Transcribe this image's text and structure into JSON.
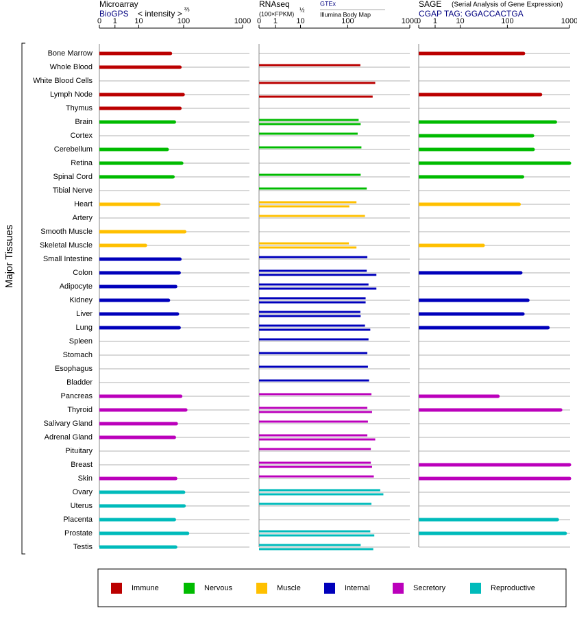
{
  "chart_data": {
    "type": "bar",
    "ylabel": "Major Tissues",
    "groups": [
      {
        "name": "Immune",
        "color": "#bb0000",
        "tissues": [
          "Bone Marrow",
          "Whole Blood",
          "White Blood Cells",
          "Lymph Node",
          "Thymus"
        ]
      },
      {
        "name": "Nervous",
        "color": "#00bb00",
        "tissues": [
          "Brain",
          "Cortex",
          "Cerebellum",
          "Retina",
          "Spinal Cord",
          "Tibial Nerve"
        ]
      },
      {
        "name": "Muscle",
        "color": "#ffc000",
        "tissues": [
          "Heart",
          "Artery",
          "Smooth Muscle",
          "Skeletal Muscle"
        ]
      },
      {
        "name": "Internal",
        "color": "#0000bb",
        "tissues": [
          "Small Intestine",
          "Colon",
          "Adipocyte",
          "Kidney",
          "Liver",
          "Lung",
          "Spleen",
          "Stomach",
          "Esophagus",
          "Bladder"
        ]
      },
      {
        "name": "Secretory",
        "color": "#bb00bb",
        "tissues": [
          "Pancreas",
          "Thyroid",
          "Salivary Gland",
          "Adrenal Gland",
          "Pituitary",
          "Breast",
          "Skin"
        ]
      },
      {
        "name": "Reproductive",
        "color": "#00bbbb",
        "tissues": [
          "Ovary",
          "Uterus",
          "Placenta",
          "Prostate",
          "Testis"
        ]
      }
    ],
    "panels": [
      {
        "title": "Microarray",
        "source": "BioGPS",
        "scale_label": "< intensity >",
        "exponent": "⅔",
        "xlim": [
          0,
          1000
        ],
        "xticks": [
          0,
          1,
          10,
          100,
          1000
        ],
        "values": [
          55,
          85,
          null,
          98,
          85,
          66,
          null,
          47,
          92,
          62,
          null,
          31,
          null,
          105,
          15,
          85,
          82,
          70,
          50,
          76,
          82,
          null,
          null,
          null,
          null,
          88,
          110,
          72,
          66,
          null,
          null,
          70,
          100,
          102,
          66,
          119,
          70
        ]
      },
      {
        "title": "RNAseq",
        "scale_label": "(100×FPKM)",
        "exponent": "½",
        "xlim": [
          0,
          1000
        ],
        "xticks": [
          0,
          1,
          10,
          100,
          1000
        ],
        "series": [
          {
            "name": "GTEx",
            "values": [
              null,
              167,
              null,
              null,
              null,
              156,
              150,
              174,
              null,
              169,
              214,
              143,
              200,
              null,
              105,
              219,
              214,
              229,
              205,
              167,
              200,
              229,
              219,
              224,
              234,
              256,
              219,
              224,
              219,
              250,
              250,
              280,
              355,
              256,
              null,
              245,
              169
            ]
          },
          {
            "name": "Illumina Body Map",
            "values": [
              null,
              null,
              295,
              268,
              null,
              169,
              null,
              null,
              null,
              null,
              null,
              107,
              null,
              null,
              143,
              null,
              308,
              308,
              205,
              169,
              245,
              null,
              null,
              null,
              null,
              null,
              262,
              null,
              295,
              null,
              262,
              null,
              398,
              null,
              null,
              285,
              274
            ]
          }
        ]
      },
      {
        "title": "SAGE",
        "subtitle": "(Serial Analysis of Gene Expression)",
        "source": "CGAP TAG: GGACCACTGA",
        "xlim": [
          0,
          1000
        ],
        "xticks": [
          0,
          1,
          10,
          100,
          1000
        ],
        "values": [
          191,
          null,
          null,
          363,
          null,
          617,
          270,
          276,
          1000,
          184,
          null,
          161,
          null,
          null,
          34,
          null,
          172,
          null,
          226,
          187,
          475,
          null,
          null,
          null,
          null,
          67,
          741,
          null,
          null,
          null,
          1000,
          1000,
          null,
          null,
          660,
          867,
          null
        ]
      }
    ]
  }
}
